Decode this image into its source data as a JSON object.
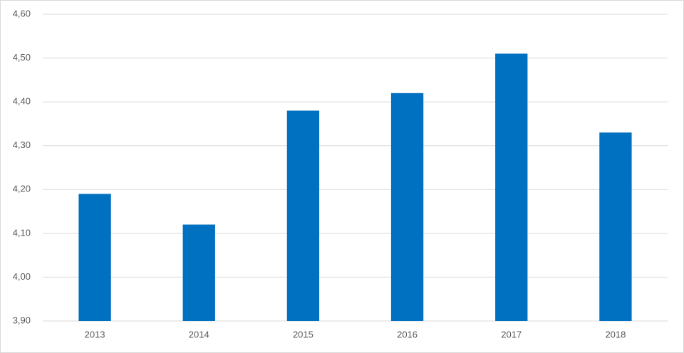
{
  "chart_data": {
    "type": "bar",
    "categories": [
      "2013",
      "2014",
      "2015",
      "2016",
      "2017",
      "2018"
    ],
    "values": [
      4.19,
      4.12,
      4.38,
      4.42,
      4.51,
      4.33
    ],
    "color": "#0070c0",
    "ylim": [
      3.9,
      4.6
    ],
    "yticks": [
      {
        "value": 3.9,
        "label": "3,90"
      },
      {
        "value": 4.0,
        "label": "4,00"
      },
      {
        "value": 4.1,
        "label": "4,10"
      },
      {
        "value": 4.2,
        "label": "4,20"
      },
      {
        "value": 4.3,
        "label": "4,30"
      },
      {
        "value": 4.4,
        "label": "4,40"
      },
      {
        "value": 4.5,
        "label": "4,50"
      },
      {
        "value": 4.6,
        "label": "4,60"
      }
    ],
    "grid": true
  }
}
